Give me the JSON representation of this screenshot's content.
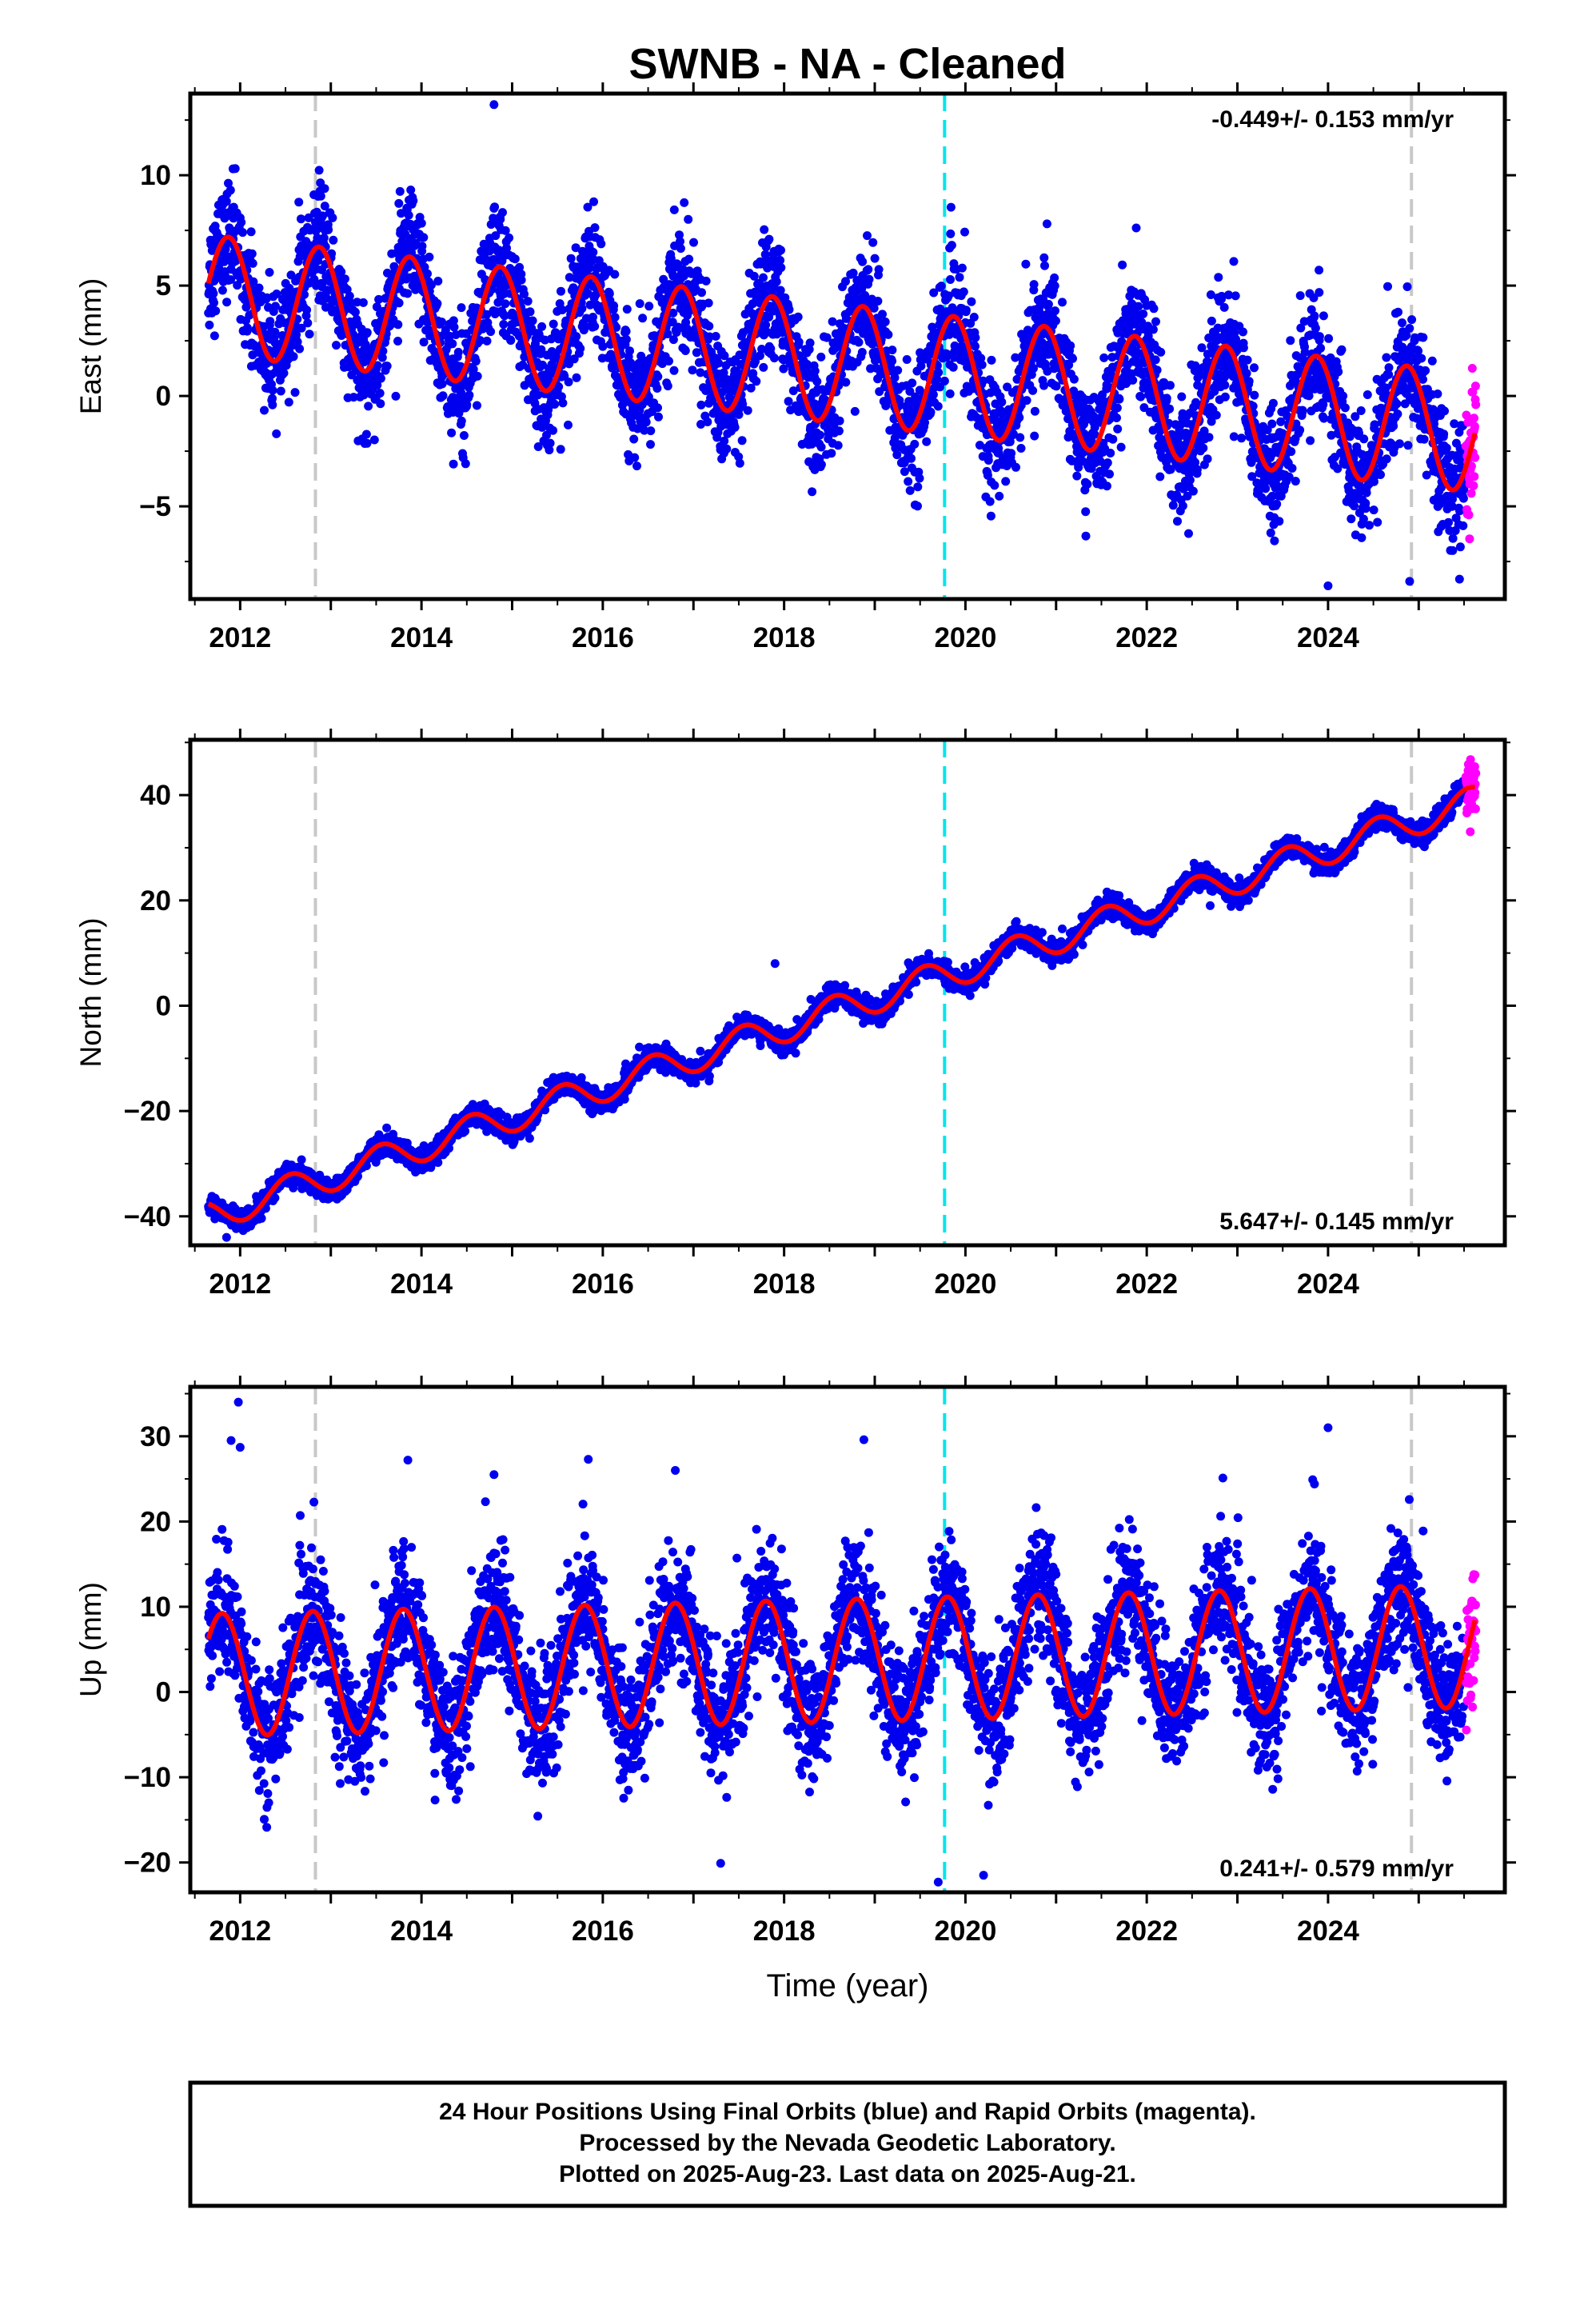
{
  "title": "SWNB  - NA - Cleaned",
  "colors": {
    "final": "#0000ee",
    "rapid": "#ff00ff",
    "model": "#ff0000",
    "equipment_change": "#c8c8c8",
    "earthquake": "#00e5ee"
  },
  "footer": {
    "line1": "24 Hour Positions Using Final Orbits (blue) and Rapid Orbits (magenta).",
    "line2": "Processed by the Nevada Geodetic Laboratory.",
    "line3": "Plotted on 2025-Aug-23. Last data on 2025-Aug-21."
  },
  "chart_data": [
    {
      "type": "scatter",
      "ylabel": "East (mm)",
      "xlabel": "",
      "rate_label": "-0.449+/- 0.153 mm/yr",
      "rate_position": "top-right",
      "xlim": [
        2011.45,
        2025.95
      ],
      "ylim": [
        -9.2,
        13.7
      ],
      "yticks": [
        -5,
        0,
        5,
        10
      ],
      "xticks": [
        2012,
        2014,
        2016,
        2018,
        2020,
        2022,
        2024
      ],
      "vlines_gray": [
        2012.83,
        2024.92
      ],
      "vlines_cyan": [
        2019.77
      ],
      "model": {
        "offset": 4.6,
        "rate": -0.449,
        "amplitude": 2.7,
        "peak_year_fraction": 0.87,
        "start": 2011.65,
        "end": 2025.62
      },
      "series": [
        {
          "name": "Final Orbits",
          "start": 2011.65,
          "end": 2025.5,
          "noise": 1.3
        },
        {
          "name": "Rapid Orbits",
          "start": 2025.52,
          "end": 2025.63,
          "noise": 1.8
        }
      ],
      "outliers": [
        [
          2014.8,
          13.2
        ],
        [
          2013.9,
          9.0
        ],
        [
          2014.8,
          8.5
        ],
        [
          2015.9,
          8.8
        ],
        [
          2020.9,
          7.8
        ],
        [
          2023.9,
          5.7
        ],
        [
          2024.9,
          -8.4
        ],
        [
          2024.0,
          -8.6
        ],
        [
          2025.45,
          -8.3
        ]
      ]
    },
    {
      "type": "scatter",
      "ylabel": "North (mm)",
      "xlabel": "",
      "rate_label": "5.647+/- 0.145 mm/yr",
      "rate_position": "bottom-right",
      "xlim": [
        2011.45,
        2025.95
      ],
      "ylim": [
        -45.5,
        50.5
      ],
      "yticks": [
        -40,
        -20,
        0,
        20,
        40
      ],
      "xticks": [
        2012,
        2014,
        2016,
        2018,
        2020,
        2022,
        2024
      ],
      "vlines_gray": [
        2012.83,
        2024.92
      ],
      "vlines_cyan": [
        2019.77
      ],
      "model": {
        "offset": -40.0,
        "rate": 5.647,
        "amplitude": 2.9,
        "peak_year_fraction": 0.55,
        "start": 2011.65,
        "end": 2025.62
      },
      "series": [
        {
          "name": "Final Orbits",
          "start": 2011.65,
          "end": 2025.5,
          "noise": 1.0
        },
        {
          "name": "Rapid Orbits",
          "start": 2025.52,
          "end": 2025.63,
          "noise": 2.5
        }
      ],
      "outliers": [
        [
          2011.85,
          -44.0
        ],
        [
          2017.9,
          8.0
        ],
        [
          2022.7,
          19.0
        ]
      ]
    },
    {
      "type": "scatter",
      "ylabel": "Up (mm)",
      "xlabel": "Time (year)",
      "rate_label": "0.241+/- 0.579 mm/yr",
      "rate_position": "bottom-right",
      "xlim": [
        2011.45,
        2025.95
      ],
      "ylim": [
        -23.5,
        35.8
      ],
      "yticks": [
        -20,
        -10,
        0,
        10,
        20,
        30
      ],
      "xticks": [
        2012,
        2014,
        2016,
        2018,
        2020,
        2022,
        2024
      ],
      "vlines_gray": [
        2012.83,
        2024.92
      ],
      "vlines_cyan": [
        2019.77
      ],
      "model": {
        "offset": 2.0,
        "rate": 0.241,
        "amplitude": 7.2,
        "peak_year_fraction": 0.8,
        "start": 2011.65,
        "end": 2025.62
      },
      "series": [
        {
          "name": "Final Orbits",
          "start": 2011.65,
          "end": 2025.5,
          "noise": 3.6
        },
        {
          "name": "Rapid Orbits",
          "start": 2025.52,
          "end": 2025.63,
          "noise": 4.0
        }
      ],
      "outliers": [
        [
          2011.98,
          34.0
        ],
        [
          2011.9,
          29.5
        ],
        [
          2012.0,
          28.7
        ],
        [
          2013.85,
          27.2
        ],
        [
          2015.84,
          27.3
        ],
        [
          2016.8,
          26.0
        ],
        [
          2018.88,
          29.6
        ],
        [
          2022.84,
          25.1
        ],
        [
          2024.0,
          31.0
        ],
        [
          2023.85,
          24.4
        ],
        [
          2014.8,
          25.5
        ],
        [
          2019.7,
          -22.3
        ],
        [
          2020.2,
          -21.5
        ],
        [
          2017.3,
          -20.1
        ]
      ]
    }
  ]
}
